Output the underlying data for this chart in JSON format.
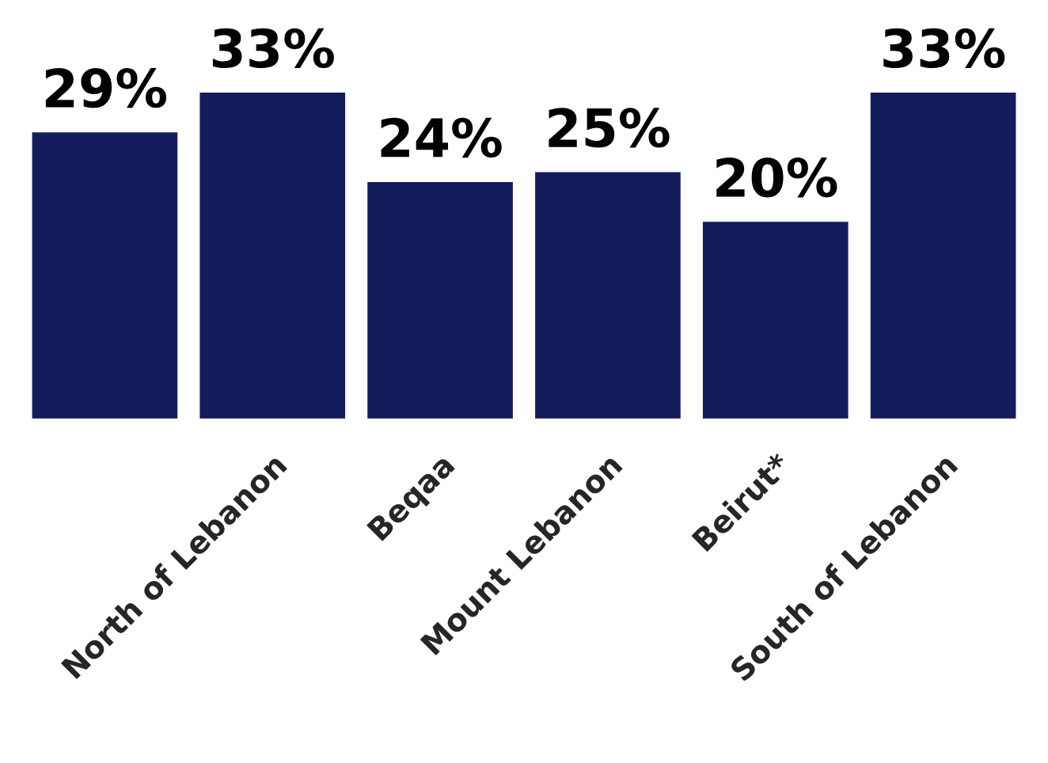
{
  "chart_data": {
    "type": "bar",
    "categories": [
      null,
      "North of Lebanon",
      "Beqaa",
      "Mount Lebanon",
      "Beirut*",
      "South of Lebanon"
    ],
    "values": [
      29,
      33,
      24,
      25,
      20,
      33
    ],
    "value_labels": [
      "29%",
      "33%",
      "24%",
      "25%",
      "20%",
      "33%"
    ],
    "color": "#131c5a"
  }
}
